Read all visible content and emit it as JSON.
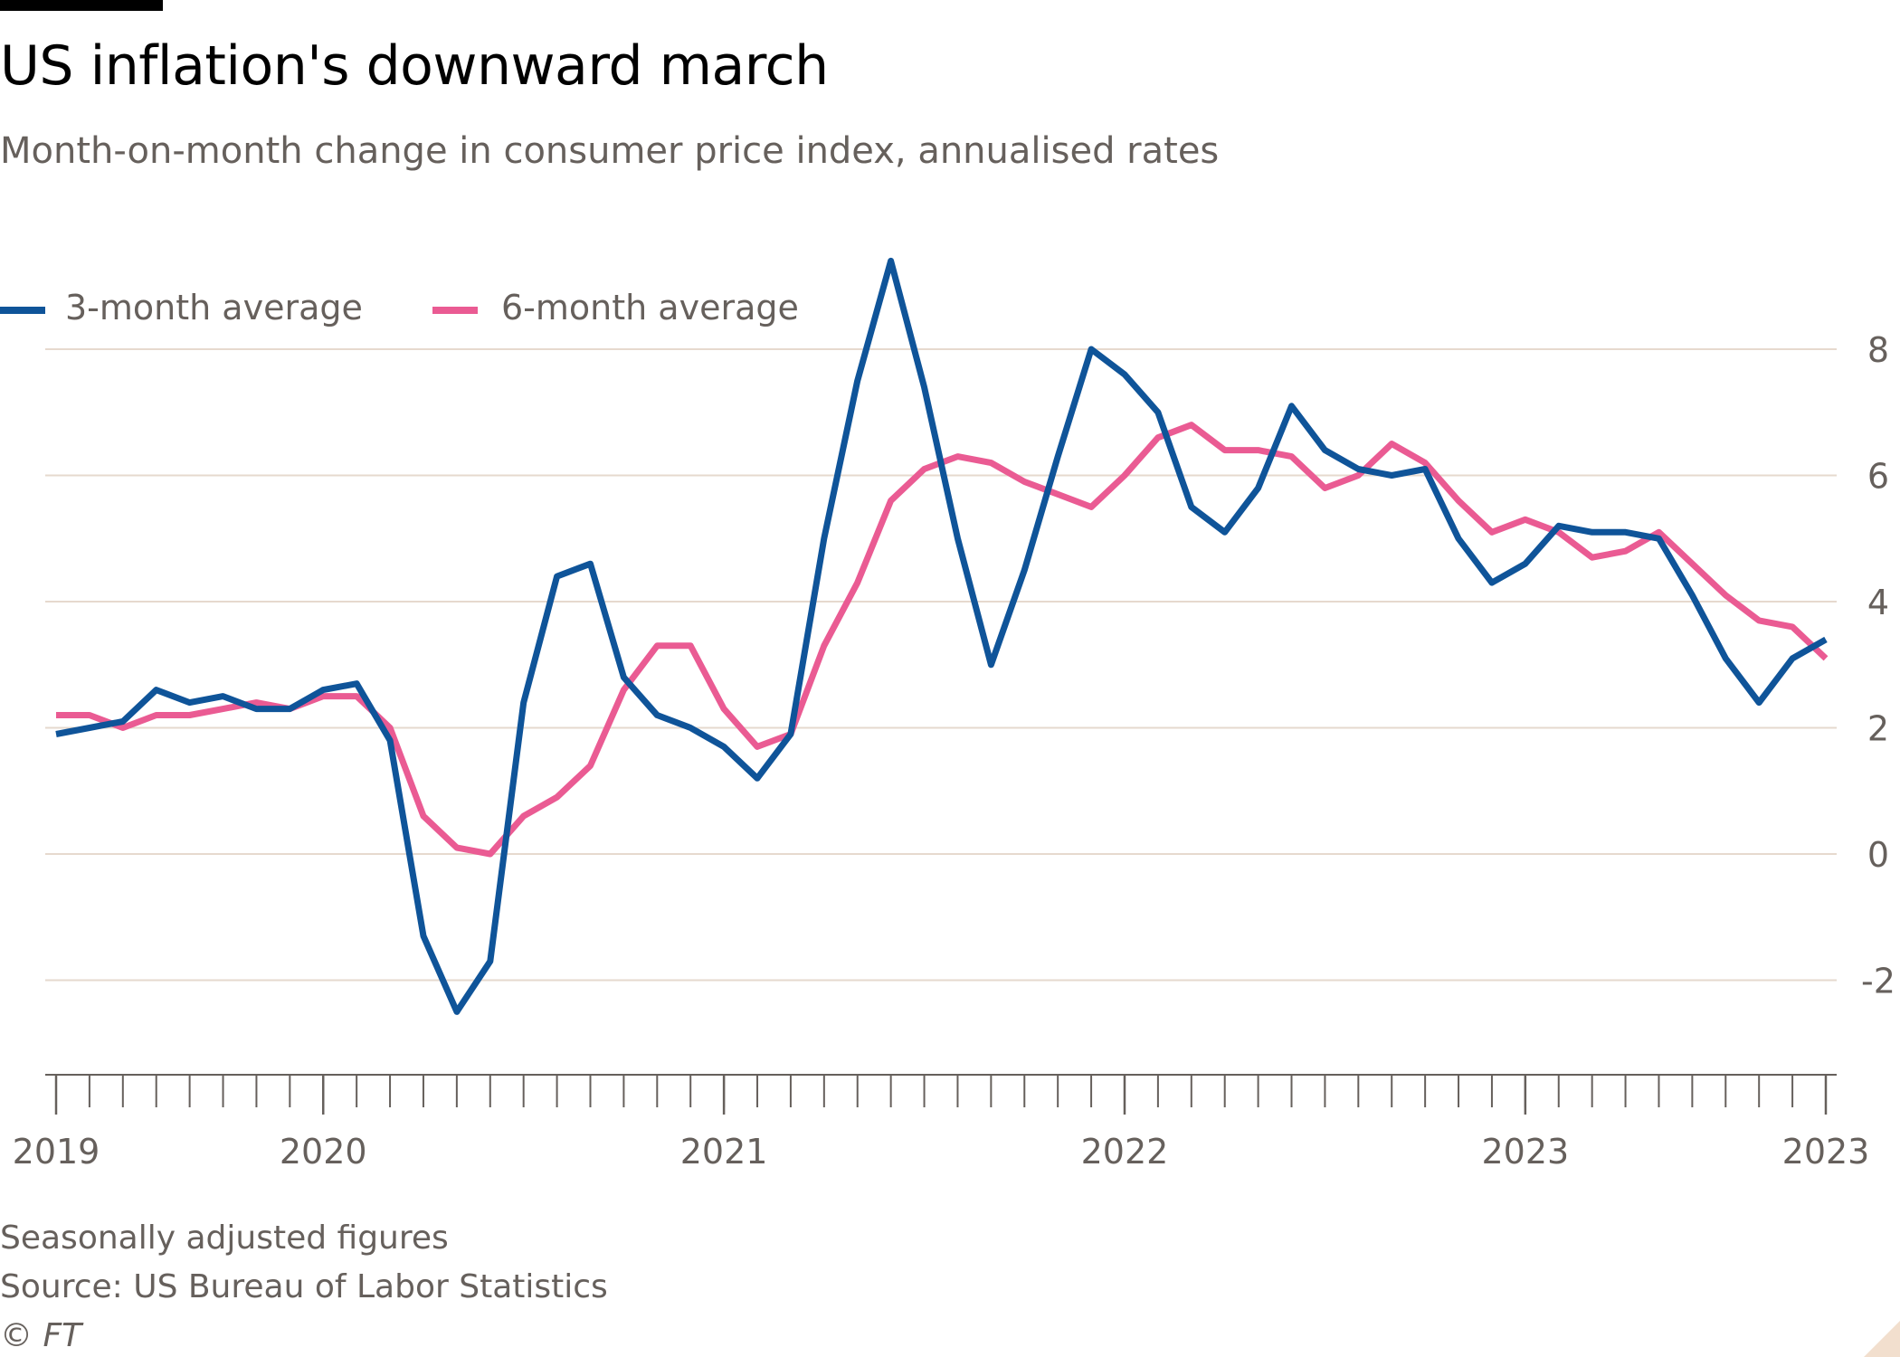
{
  "header": {
    "title": "US inflation's downward march",
    "subtitle": "Month-on-month change in consumer price index, annualised rates"
  },
  "legend": {
    "items": [
      {
        "label": "3-month average",
        "color": "#0f5499"
      },
      {
        "label": "6-month average",
        "color": "#ea5b93"
      }
    ]
  },
  "footer": {
    "note": "Seasonally adjusted figures",
    "source": "Source: US Bureau of Labor Statistics",
    "copyright": "© FT"
  },
  "colors": {
    "gridline": "#e6d9ce",
    "axis": "#66605c",
    "tick_text": "#66605c"
  },
  "chart_data": {
    "type": "line",
    "title": "US inflation's downward march",
    "subtitle": "Month-on-month change in consumer price index, annualised rates",
    "xlabel": "",
    "ylabel": "",
    "y_axis_side": "right",
    "ylim": [
      -3.4,
      9.6
    ],
    "yticks": [
      -2,
      0,
      2,
      4,
      6,
      8
    ],
    "ytick_labels": [
      "-2",
      "0",
      "2",
      "4",
      "6",
      "8"
    ],
    "x_start_month": 0,
    "x_end_month": 53,
    "xticks": [
      {
        "month": 0,
        "label": "2019"
      },
      {
        "month": 8,
        "label": "2020"
      },
      {
        "month": 20,
        "label": "2021"
      },
      {
        "month": 32,
        "label": "2022"
      },
      {
        "month": 44,
        "label": "2023"
      },
      {
        "month": 53,
        "label": "2023"
      }
    ],
    "grid": true,
    "legend_position": "top-left",
    "series": [
      {
        "name": "3-month average",
        "color": "#0f5499",
        "start_month": 0,
        "values": [
          1.9,
          2.0,
          2.1,
          2.6,
          2.4,
          2.5,
          2.3,
          2.3,
          2.6,
          2.7,
          1.8,
          -1.3,
          -2.5,
          -1.7,
          2.4,
          4.4,
          4.6,
          2.8,
          2.2,
          2.0,
          1.7,
          1.2,
          1.9,
          5.0,
          7.5,
          9.4,
          7.4,
          5.0,
          3.0,
          4.5,
          6.3,
          8.0,
          7.6,
          7.0,
          5.5,
          5.1,
          5.8,
          7.1,
          6.4,
          6.1,
          6.0,
          6.1,
          5.0,
          4.3,
          4.6,
          5.2,
          5.1,
          5.1,
          5.0,
          4.1,
          3.1,
          2.4,
          3.1,
          3.4
        ]
      },
      {
        "name": "6-month average",
        "color": "#ea5b93",
        "start_month": 0,
        "values": [
          2.2,
          2.2,
          2.0,
          2.2,
          2.2,
          2.3,
          2.4,
          2.3,
          2.5,
          2.5,
          2.0,
          0.6,
          0.1,
          0.0,
          0.6,
          0.9,
          1.4,
          2.6,
          3.3,
          3.3,
          2.3,
          1.7,
          1.9,
          3.3,
          4.3,
          5.6,
          6.1,
          6.3,
          6.2,
          5.9,
          5.7,
          5.5,
          6.0,
          6.6,
          6.8,
          6.4,
          6.4,
          6.3,
          5.8,
          6.0,
          6.5,
          6.2,
          5.6,
          5.1,
          5.3,
          5.1,
          4.7,
          4.8,
          5.1,
          4.6,
          4.1,
          3.7,
          3.6,
          3.1
        ]
      }
    ]
  }
}
